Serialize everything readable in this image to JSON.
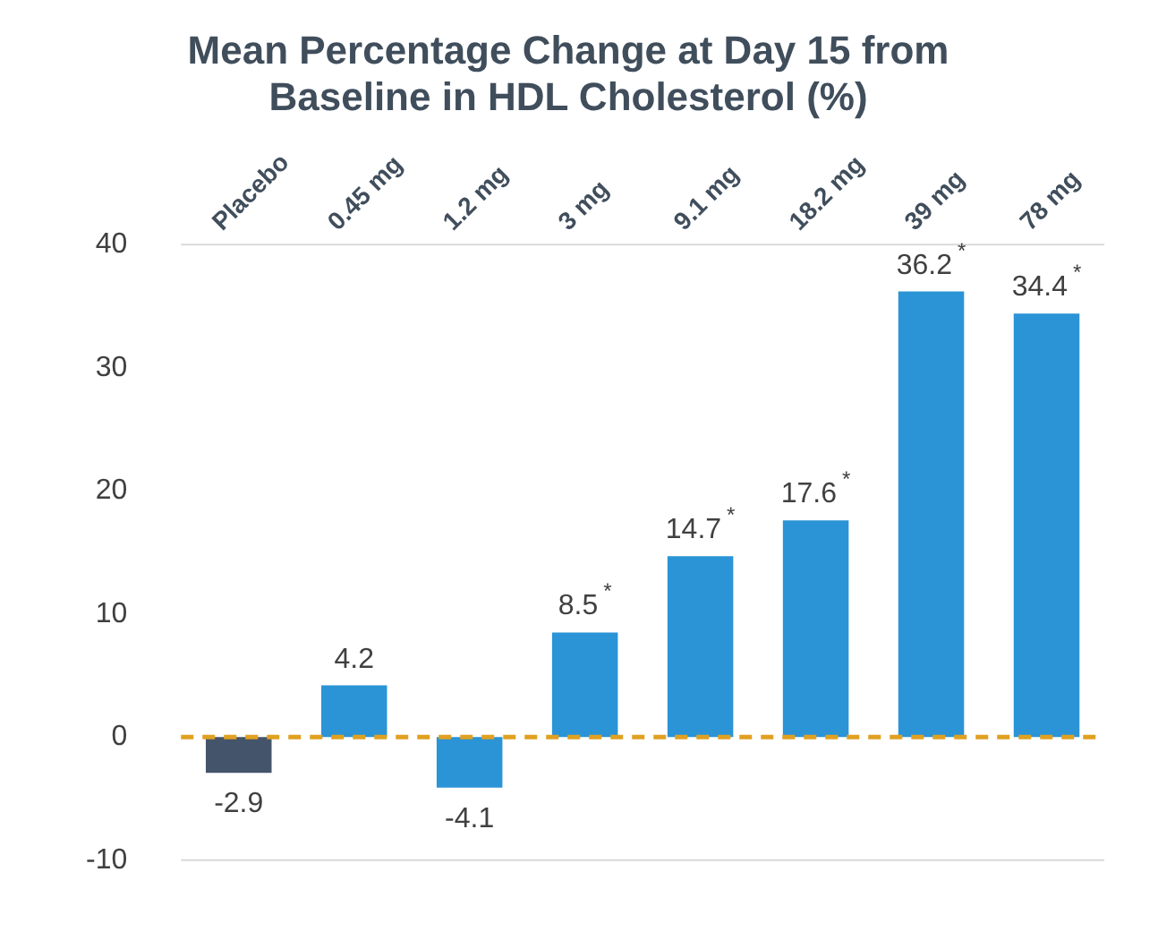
{
  "chart_data": {
    "type": "bar",
    "title": "Mean Percentage Change at Day 15 from Baseline in HDL Cholesterol (%)",
    "categories": [
      "Placebo",
      "0.45 mg",
      "1.2 mg",
      "3 mg",
      "9.1 mg",
      "18.2 mg",
      "39 mg",
      "78 mg"
    ],
    "values": [
      -2.9,
      4.2,
      -4.1,
      8.5,
      14.7,
      17.6,
      36.2,
      34.4
    ],
    "colors": [
      "#44546a",
      "#2a94d6",
      "#2a94d6",
      "#2a94d6",
      "#2a94d6",
      "#2a94d6",
      "#2a94d6",
      "#2a94d6"
    ],
    "value_labels": [
      "-2.9",
      "4.2",
      "-4.1",
      "8.5$^{*}$",
      "14.7$^{*}$",
      "17.6$^{*}$",
      "36.2$^{*}$",
      "34.4$^{*}$"
    ],
    "ylim": [
      -10,
      40
    ],
    "yticks": [
      -10,
      0,
      10,
      20,
      30,
      40
    ],
    "ref_lines": [
      {
        "axis": "y",
        "value": 0,
        "color": "#e0a020",
        "line_style": "dashed"
      }
    ],
    "grid": false,
    "legend": false
  }
}
